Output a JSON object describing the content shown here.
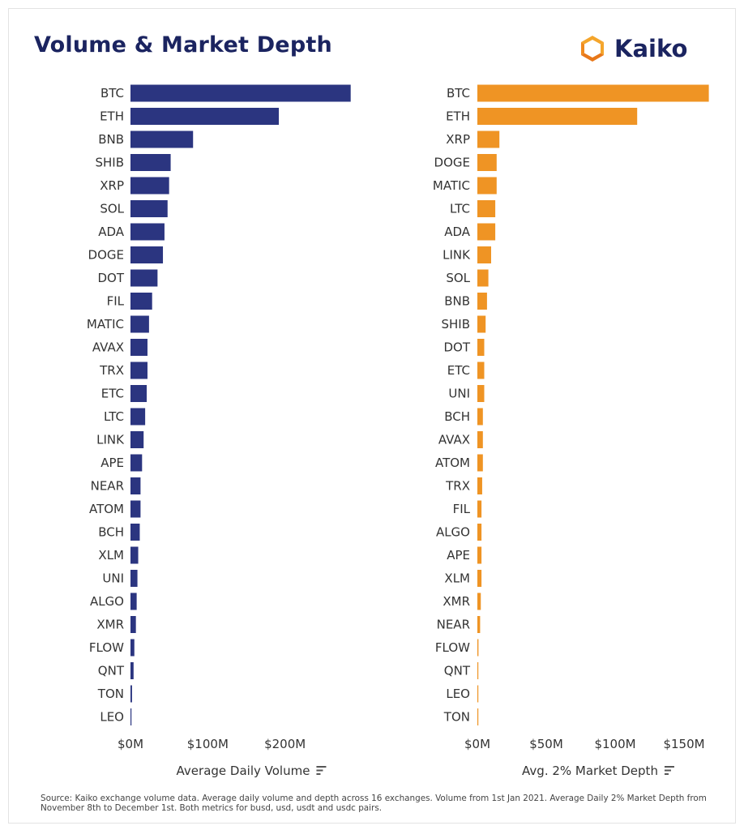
{
  "header": {
    "title": "Volume & Market Depth",
    "logo_text": "Kaiko"
  },
  "colors": {
    "volume_bar": "#2b3580",
    "depth_bar": "#ef9424",
    "title": "#1b2460",
    "text": "#333333"
  },
  "footnote": "Source: Kaiko exchange volume data. Average daily volume and depth across 16 exchanges. Volume from 1st Jan 2021. Average Daily 2% Market Depth from November 8th to December 1st. Both metrics for busd, usd, usdt and usdc pairs.",
  "chart_data": [
    {
      "type": "bar",
      "orientation": "horizontal",
      "xlabel": "Average Daily Volume",
      "xlim": [
        0,
        300
      ],
      "xticks": [
        0,
        100,
        200
      ],
      "xtick_labels": [
        "$0M",
        "$100M",
        "$200M"
      ],
      "unit": "$M",
      "grid": false,
      "categories": [
        "BTC",
        "ETH",
        "BNB",
        "SHIB",
        "XRP",
        "SOL",
        "ADA",
        "DOGE",
        "DOT",
        "FIL",
        "MATIC",
        "AVAX",
        "TRX",
        "ETC",
        "LTC",
        "LINK",
        "APE",
        "NEAR",
        "ATOM",
        "BCH",
        "XLM",
        "UNI",
        "ALGO",
        "XMR",
        "FLOW",
        "QNT",
        "TON",
        "LEO"
      ],
      "values": [
        285,
        192,
        81,
        52,
        50,
        48,
        44,
        42,
        35,
        28,
        24,
        22,
        22,
        21,
        19,
        17,
        15,
        13,
        13,
        12,
        10,
        9,
        8,
        7,
        5,
        4,
        2,
        1
      ]
    },
    {
      "type": "bar",
      "orientation": "horizontal",
      "xlabel": "Avg. 2% Market Depth",
      "xlim": [
        0,
        170
      ],
      "xticks": [
        0,
        50,
        100,
        150
      ],
      "xtick_labels": [
        "$0M",
        "$50M",
        "$100M",
        "$150M"
      ],
      "unit": "$M",
      "grid": false,
      "categories": [
        "BTC",
        "ETH",
        "XRP",
        "DOGE",
        "MATIC",
        "LTC",
        "ADA",
        "LINK",
        "SOL",
        "BNB",
        "SHIB",
        "DOT",
        "ETC",
        "UNI",
        "BCH",
        "AVAX",
        "ATOM",
        "TRX",
        "FIL",
        "ALGO",
        "APE",
        "XLM",
        "XMR",
        "NEAR",
        "FLOW",
        "QNT",
        "LEO",
        "TON"
      ],
      "values": [
        168,
        116,
        16,
        14,
        14,
        13,
        13,
        10,
        8,
        7,
        6,
        5,
        5,
        5,
        4,
        4,
        4,
        3.5,
        3,
        3,
        3,
        3,
        2.5,
        2,
        0.8,
        0.6,
        0.5,
        0.5
      ]
    }
  ]
}
